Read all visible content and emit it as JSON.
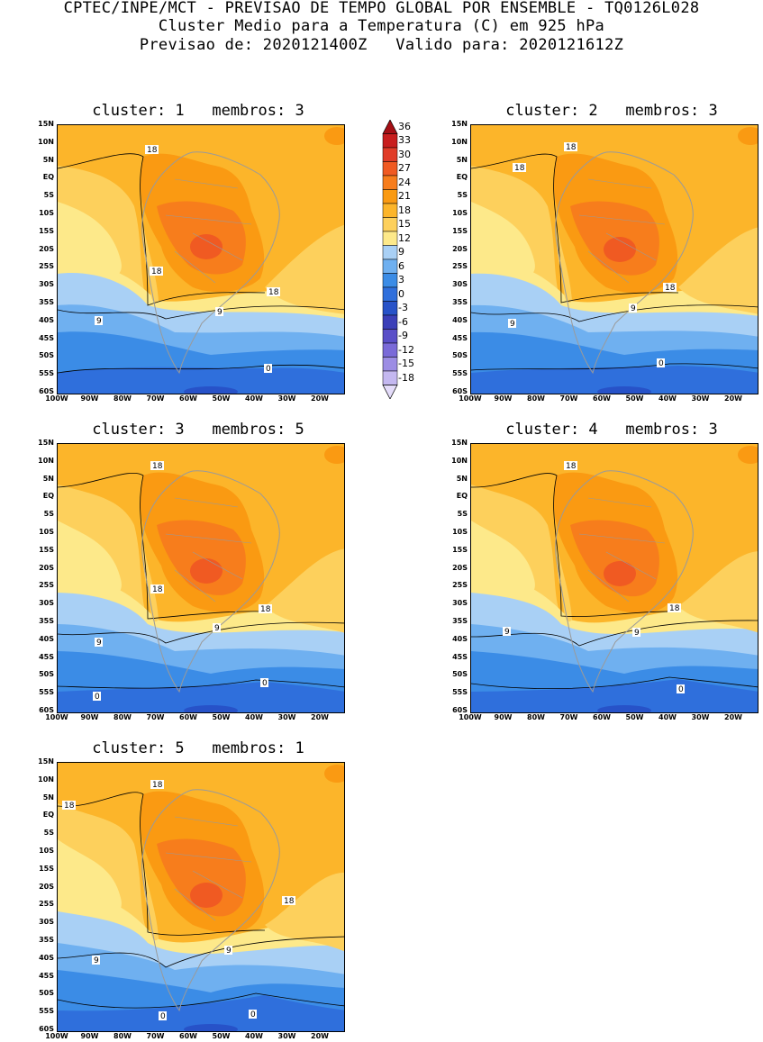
{
  "header": {
    "line1": "CPTEC/INPE/MCT - PREVISAO DE TEMPO GLOBAL POR ENSEMBLE - TQ0126L028",
    "line2": "Cluster Medio para a Temperatura (C) em 925 hPa",
    "line3": "Previsao de: 2020121400Z   Valido para: 2020121612Z"
  },
  "axes": {
    "lat_labels": [
      "15N",
      "10N",
      "5N",
      "EQ",
      "5S",
      "10S",
      "15S",
      "20S",
      "25S",
      "30S",
      "35S",
      "40S",
      "45S",
      "50S",
      "55S",
      "60S"
    ],
    "lon_labels": [
      "100W",
      "90W",
      "80W",
      "70W",
      "60W",
      "50W",
      "40W",
      "30W",
      "20W"
    ]
  },
  "colorbar": {
    "levels": [
      "36",
      "33",
      "30",
      "27",
      "24",
      "21",
      "18",
      "15",
      "12",
      "9",
      "6",
      "3",
      "0",
      "-3",
      "-6",
      "-9",
      "-12",
      "-15",
      "-18"
    ],
    "colors": [
      "#a50f15",
      "#c81e1e",
      "#e03c28",
      "#f05a22",
      "#f77d1c",
      "#fa9a12",
      "#fcb52a",
      "#fdd05c",
      "#fde98a",
      "#a9d0f5",
      "#6fb0f0",
      "#3b8ce6",
      "#2f6fdc",
      "#2752c8",
      "#3b3fb8",
      "#5a4fc8",
      "#7a6ad8",
      "#9c8de4",
      "#c4b8f0",
      "#e4dcfa"
    ]
  },
  "panels": [
    {
      "title": "cluster: 1   membros: 3",
      "contour_labels": [
        "18",
        "18",
        "18",
        "9",
        "9",
        "0"
      ]
    },
    {
      "title": "cluster: 2   membros: 3",
      "contour_labels": [
        "18",
        "18",
        "18",
        "9",
        "9",
        "0"
      ]
    },
    {
      "title": "cluster: 3   membros: 5",
      "contour_labels": [
        "18",
        "18",
        "18",
        "9",
        "9",
        "0",
        "0"
      ]
    },
    {
      "title": "cluster: 4   membros: 3",
      "contour_labels": [
        "18",
        "18",
        "9",
        "9",
        "0"
      ]
    },
    {
      "title": "cluster: 5   membros: 1",
      "contour_labels": [
        "18",
        "18",
        "18",
        "9",
        "9",
        "0",
        "0"
      ]
    }
  ]
}
